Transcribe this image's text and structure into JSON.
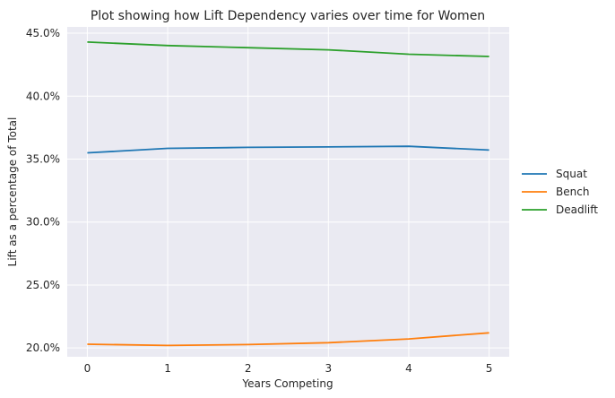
{
  "chart_data": {
    "type": "line",
    "title": "Plot showing how Lift Dependency varies over time for Women",
    "xlabel": "Years Competing",
    "ylabel": "Lift as a percentage of Total",
    "x": [
      0,
      1,
      2,
      3,
      4,
      5
    ],
    "xticks": [
      "0",
      "1",
      "2",
      "3",
      "4",
      "5"
    ],
    "xlim": [
      -0.25,
      5.25
    ],
    "yticks": [
      20.0,
      25.0,
      30.0,
      35.0,
      40.0,
      45.0
    ],
    "ytick_labels": [
      "20.0%",
      "25.0%",
      "30.0%",
      "35.0%",
      "40.0%",
      "45.0%"
    ],
    "ylim": [
      19.3,
      45.5
    ],
    "grid": true,
    "legend_position": "right",
    "series": [
      {
        "name": "Squat",
        "color": "#1f77b4",
        "values": [
          35.5,
          35.85,
          35.93,
          35.97,
          36.02,
          35.72
        ]
      },
      {
        "name": "Bench",
        "color": "#ff7f0e",
        "values": [
          20.3,
          20.2,
          20.27,
          20.42,
          20.72,
          21.2
        ]
      },
      {
        "name": "Deadlift",
        "color": "#2ca02c",
        "values": [
          44.3,
          44.02,
          43.85,
          43.68,
          43.33,
          43.15
        ]
      }
    ]
  }
}
